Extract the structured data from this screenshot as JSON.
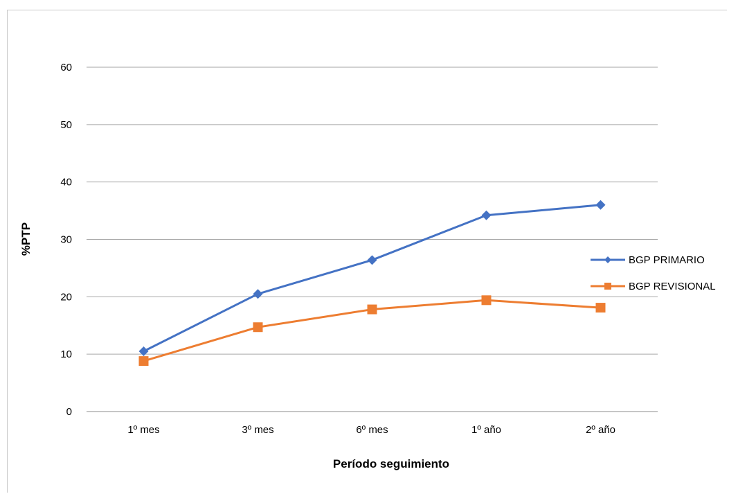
{
  "chart_data": {
    "type": "line",
    "title": "",
    "xlabel": "Período seguimiento",
    "ylabel": "%PTP",
    "categories": [
      "1º mes",
      "3º mes",
      "6º mes",
      "1º año",
      "2º año"
    ],
    "ylim": [
      0,
      60
    ],
    "yticks": [
      0,
      10,
      20,
      30,
      40,
      50,
      60
    ],
    "grid": true,
    "legend": "right",
    "series": [
      {
        "name": "BGP PRIMARIO",
        "values": [
          10.5,
          20.5,
          26.4,
          34.2,
          36.0
        ],
        "color": "#4472C4",
        "marker": "diamond"
      },
      {
        "name": "BGP REVISIONAL",
        "values": [
          8.8,
          14.7,
          17.8,
          19.4,
          18.1
        ],
        "color": "#ED7D31",
        "marker": "square"
      }
    ]
  }
}
